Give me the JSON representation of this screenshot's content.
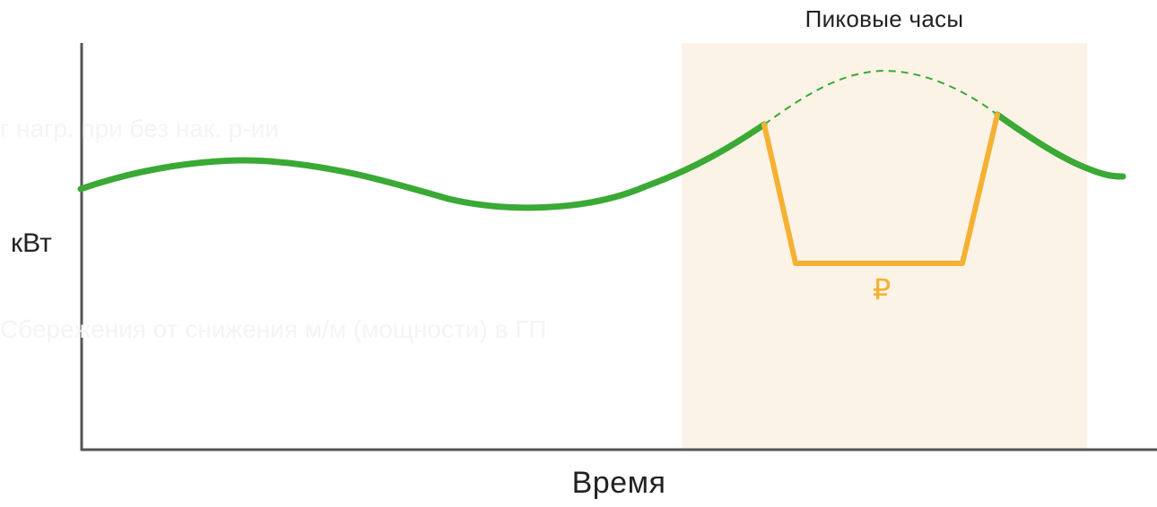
{
  "diagram": {
    "peak_label": "Пиковые часы",
    "y_axis_label": "кВт",
    "x_axis_label": "Время",
    "savings_symbol": "₽",
    "faint_text_1": "г нагр. при без нак. р-ии",
    "faint_text_2": "Сбережения от снижения м/м (мощности) в ГП",
    "colors": {
      "consumption_line": "#3aa935",
      "storage_line": "#f5b133",
      "peak_zone": "#fbf3e6",
      "axes": "#555555",
      "label_text": "#222222"
    }
  }
}
